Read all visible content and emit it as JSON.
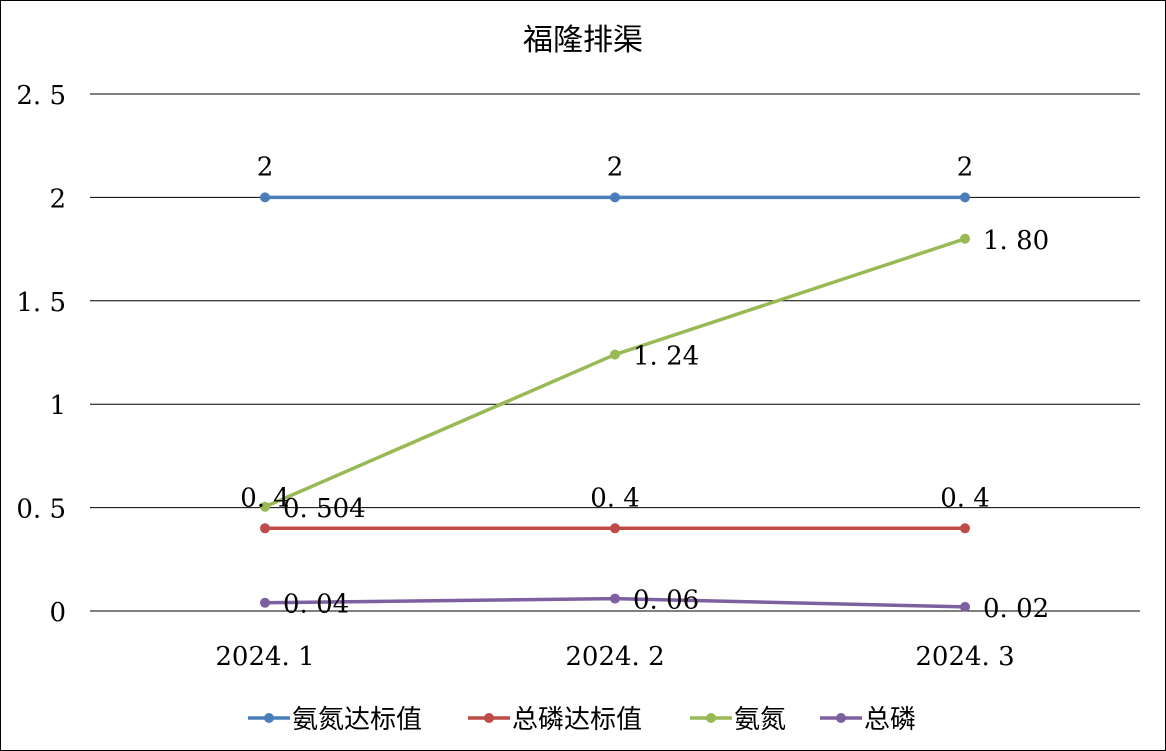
{
  "chart_data": {
    "type": "line",
    "title": "福隆排渠",
    "xlabel": "",
    "ylabel": "",
    "categories": [
      "2024.1",
      "2024.2",
      "2024.3"
    ],
    "ylim": [
      0,
      2.5
    ],
    "yticks": [
      0,
      0.5,
      1,
      1.5,
      2,
      2.5
    ],
    "ytick_labels": [
      "0",
      "0.5",
      "1",
      "1.5",
      "2",
      "2.5"
    ],
    "grid": true,
    "legend_position": "bottom",
    "series": [
      {
        "name": "氨氮达标值",
        "color": "#4A7EBB",
        "values": [
          2,
          2,
          2
        ],
        "labels": [
          "2",
          "2",
          "2"
        ],
        "label_pos": "above"
      },
      {
        "name": "总磷达标值",
        "color": "#BE4B48",
        "values": [
          0.4,
          0.4,
          0.4
        ],
        "labels": [
          "0.4",
          "0.4",
          "0.4"
        ],
        "label_pos": "above"
      },
      {
        "name": "氨氮",
        "color": "#98B954",
        "values": [
          0.504,
          1.24,
          1.8
        ],
        "labels": [
          "0.504",
          "1.24",
          "1.80"
        ],
        "label_pos": "right"
      },
      {
        "name": "总磷",
        "color": "#7D60A0",
        "values": [
          0.04,
          0.06,
          0.02
        ],
        "labels": [
          "0.04",
          "0.06",
          "0.02"
        ],
        "label_pos": "right"
      }
    ]
  }
}
